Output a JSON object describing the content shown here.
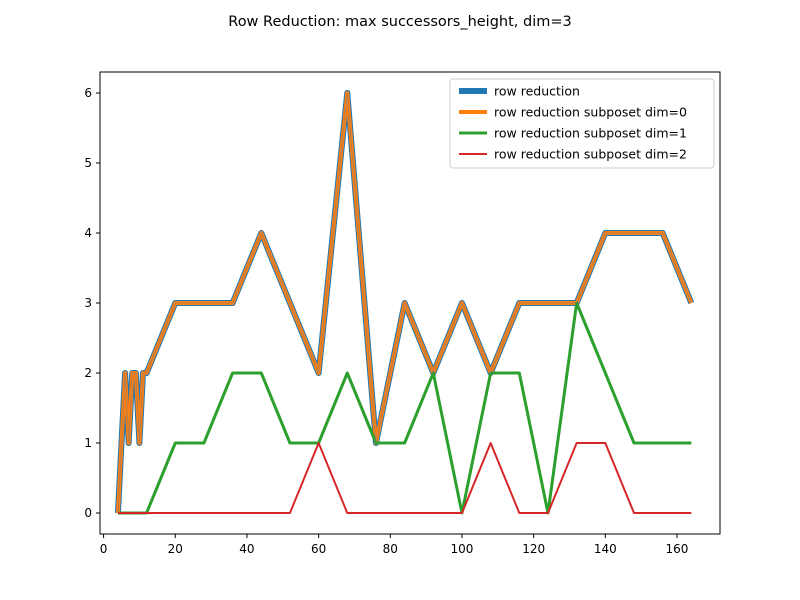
{
  "chart_data": {
    "type": "line",
    "title": "Row Reduction: max successors_height, dim=3",
    "xlabel": "",
    "ylabel": "",
    "xlim": [
      -1,
      172
    ],
    "ylim": [
      -0.3,
      6.3
    ],
    "xticks": [
      0,
      20,
      40,
      60,
      80,
      100,
      120,
      140,
      160
    ],
    "yticks": [
      0,
      1,
      2,
      3,
      4,
      5,
      6
    ],
    "grid": false,
    "legend_position": "upper right",
    "series": [
      {
        "name": "row reduction",
        "color": "#1f77b4",
        "x": [
          4,
          5,
          6,
          7,
          8,
          9,
          10,
          11,
          12,
          20,
          28,
          36,
          44,
          52,
          60,
          68,
          76,
          84,
          92,
          100,
          108,
          116,
          124,
          132,
          140,
          148,
          156,
          164
        ],
        "y": [
          0,
          1,
          2,
          1,
          2,
          2,
          1,
          2,
          2,
          3,
          3,
          3,
          4,
          3,
          2,
          6,
          1,
          3,
          2,
          3,
          2,
          3,
          3,
          3,
          4,
          4,
          4,
          3
        ]
      },
      {
        "name": "row reduction subposet dim=0",
        "color": "#ff7f0e",
        "x": [
          4,
          5,
          6,
          7,
          8,
          9,
          10,
          11,
          12,
          20,
          28,
          36,
          44,
          52,
          60,
          68,
          76,
          84,
          92,
          100,
          108,
          116,
          124,
          132,
          140,
          148,
          156,
          164
        ],
        "y": [
          0,
          1,
          2,
          1,
          2,
          2,
          1,
          2,
          2,
          3,
          3,
          3,
          4,
          3,
          2,
          6,
          1,
          3,
          2,
          3,
          2,
          3,
          3,
          3,
          4,
          4,
          4,
          3
        ]
      },
      {
        "name": "row reduction subposet dim=1",
        "color": "#2ca02c",
        "x": [
          4,
          12,
          20,
          28,
          36,
          44,
          52,
          60,
          68,
          76,
          84,
          92,
          100,
          108,
          116,
          124,
          132,
          140,
          148,
          156,
          164
        ],
        "y": [
          0,
          0,
          1,
          1,
          2,
          2,
          1,
          1,
          2,
          1,
          1,
          2,
          0,
          2,
          2,
          0,
          3,
          2,
          1,
          1,
          1
        ]
      },
      {
        "name": "row reduction subposet dim=2",
        "color": "#d62728",
        "x": [
          4,
          12,
          20,
          28,
          36,
          44,
          52,
          60,
          68,
          76,
          84,
          92,
          100,
          108,
          116,
          124,
          132,
          140,
          148,
          156,
          164
        ],
        "y": [
          0,
          0,
          0,
          0,
          0,
          0,
          0,
          1,
          0,
          0,
          0,
          0,
          0,
          1,
          0,
          0,
          1,
          1,
          0,
          0,
          0
        ]
      }
    ]
  }
}
